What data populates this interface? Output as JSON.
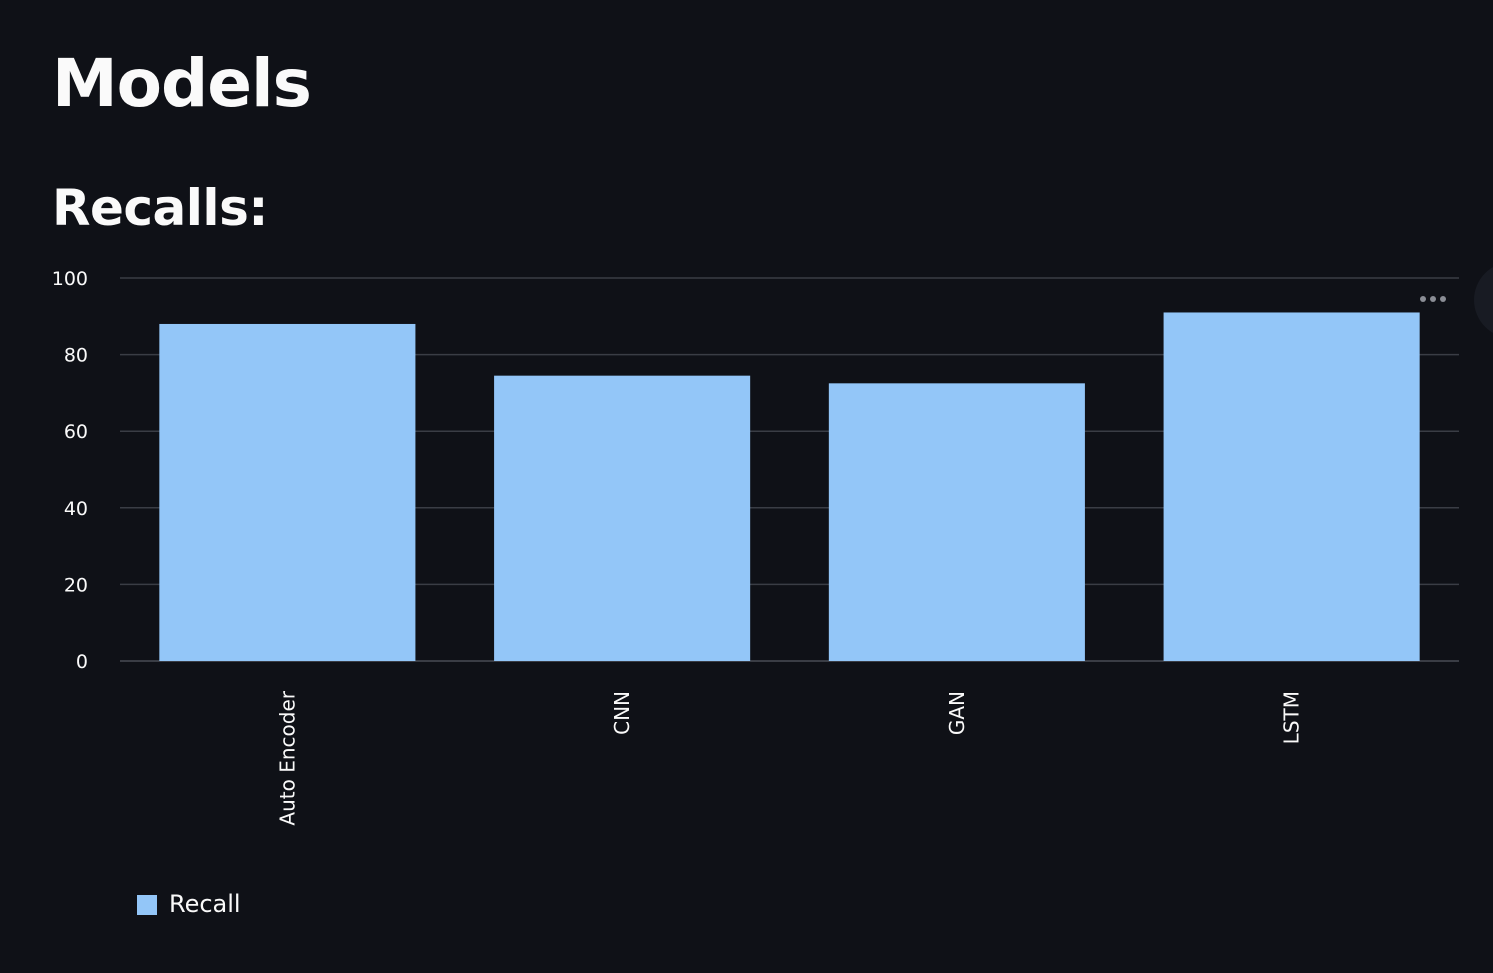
{
  "page": {
    "title": "Models",
    "section_title": "Recalls:"
  },
  "colors": {
    "background": "#0f1117",
    "bar": "#93c6f8",
    "grid": "#3a3d45",
    "text": "#fafafa"
  },
  "icons": {
    "menu": "more-horizontal-icon"
  },
  "chart_data": {
    "type": "bar",
    "categories": [
      "Auto Encoder",
      "CNN",
      "GAN",
      "LSTM"
    ],
    "series": [
      {
        "name": "Recall",
        "values": [
          88,
          74.5,
          72.5,
          91
        ]
      }
    ],
    "title": "",
    "xlabel": "",
    "ylabel": "",
    "ylim": [
      0,
      100
    ],
    "yticks": [
      0,
      20,
      40,
      60,
      80,
      100
    ],
    "grid": true,
    "legend_position": "bottom-left"
  }
}
